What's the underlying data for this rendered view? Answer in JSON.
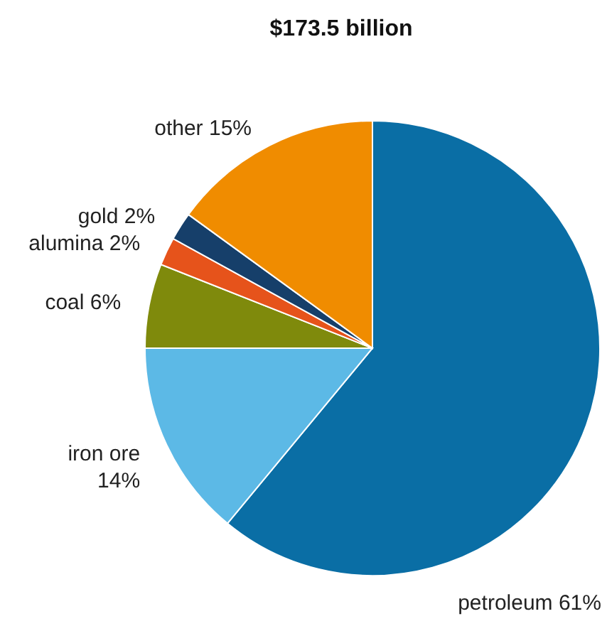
{
  "chart_data": {
    "type": "pie",
    "title": "$173.5 billion",
    "categories": [
      "petroleum",
      "iron ore",
      "coal",
      "alumina",
      "gold",
      "other"
    ],
    "values": [
      61,
      14,
      6,
      2,
      2,
      15
    ],
    "value_labels": [
      "61%",
      "14%",
      "6%",
      "2%",
      "2%",
      "15%"
    ],
    "colors": [
      "#0a6ea5",
      "#5cb9e6",
      "#7f8a0c",
      "#e6531b",
      "#163f6a",
      "#f08c00"
    ]
  }
}
